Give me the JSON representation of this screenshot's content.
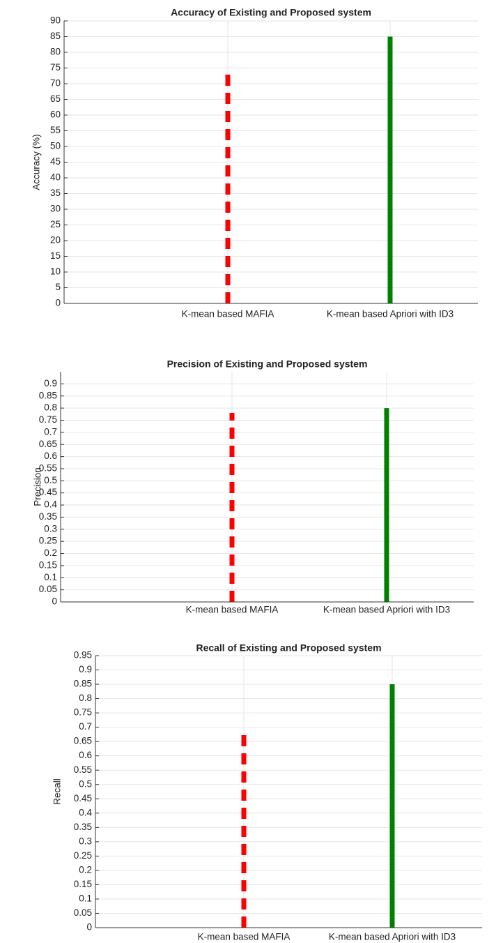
{
  "chart_data": [
    {
      "type": "bar",
      "title": "Accuracy of Existing and Proposed system",
      "y_label": "Accuracy (%)",
      "categories": [
        "K-mean based MAFIA",
        "K-mean based Apriori with ID3"
      ],
      "values": [
        73.5,
        85
      ],
      "colors": [
        "#ff0000",
        "#008000"
      ],
      "dashed": [
        true,
        false
      ],
      "ylim": [
        0,
        90
      ],
      "yticks": [
        0,
        5,
        10,
        15,
        20,
        25,
        30,
        35,
        40,
        45,
        50,
        55,
        60,
        65,
        70,
        75,
        80,
        85,
        90
      ],
      "grid": true
    },
    {
      "type": "bar",
      "title": "Precision of Existing and Proposed system",
      "y_label": "Precision",
      "categories": [
        "K-mean based MAFIA",
        "K-mean based Apriori with ID3"
      ],
      "values": [
        0.78,
        0.8
      ],
      "colors": [
        "#ff0000",
        "#008000"
      ],
      "dashed": [
        true,
        false
      ],
      "ylim": [
        0,
        0.95
      ],
      "yticks": [
        0,
        0.05,
        0.1,
        0.15,
        0.2,
        0.25,
        0.3,
        0.35,
        0.4,
        0.45,
        0.5,
        0.55,
        0.6,
        0.65,
        0.7,
        0.75,
        0.8,
        0.85,
        0.9
      ],
      "grid": true
    },
    {
      "type": "bar",
      "title": "Recall of Existing and Proposed system",
      "y_label": "Recall",
      "categories": [
        "K-mean based MAFIA",
        "K-mean based Apriori with ID3"
      ],
      "values": [
        0.68,
        0.85
      ],
      "colors": [
        "#ff0000",
        "#008000"
      ],
      "dashed": [
        true,
        false
      ],
      "ylim": [
        0,
        0.95
      ],
      "yticks": [
        0,
        0.05,
        0.1,
        0.15,
        0.2,
        0.25,
        0.3,
        0.35,
        0.4,
        0.45,
        0.5,
        0.55,
        0.6,
        0.65,
        0.7,
        0.75,
        0.8,
        0.85,
        0.9,
        0.95
      ],
      "grid": true
    }
  ]
}
